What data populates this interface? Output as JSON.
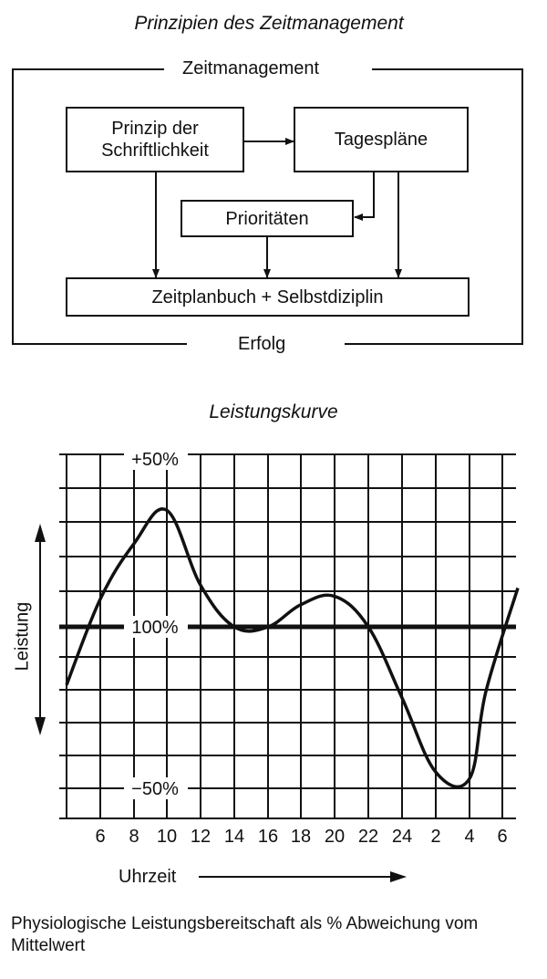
{
  "diagram": {
    "title": "Prinzipien des Zeitmanagement",
    "frame_label": "Zeitmanagement",
    "outcome_label": "Erfolg",
    "nodes": {
      "prinzip_line1": "Prinzip der",
      "prinzip_line2": "Schriftlichkeit",
      "tagesplaene": "Tagespläne",
      "prioritaeten": "Prioritäten",
      "zeitplanbuch": "Zeitplanbuch + Selbstdiziplin"
    }
  },
  "chart": {
    "title": "Leistungskurve",
    "ylabel": "Leistung",
    "xlabel": "Uhrzeit",
    "y_ticks": [
      "+50%",
      "100%",
      "−50%"
    ],
    "x_ticks": [
      "6",
      "8",
      "10",
      "12",
      "14",
      "16",
      "18",
      "20",
      "22",
      "24",
      "2",
      "4",
      "6"
    ],
    "caption": "Physiologische Leistungsbereitschaft als % Abweichung vom Mittelwert"
  },
  "chart_data": {
    "type": "line",
    "title": "Leistungskurve",
    "xlabel": "Uhrzeit",
    "ylabel": "Leistung",
    "x": [
      "3",
      "6",
      "8",
      "10",
      "12",
      "14",
      "16",
      "18",
      "20",
      "22",
      "24",
      "2",
      "4",
      "5",
      "6"
    ],
    "values": [
      -18,
      10,
      30,
      42,
      15,
      0,
      0,
      8,
      11,
      0,
      -22,
      -45,
      -47,
      -20,
      14
    ],
    "ylim": [
      -50,
      50
    ],
    "grid": true
  }
}
